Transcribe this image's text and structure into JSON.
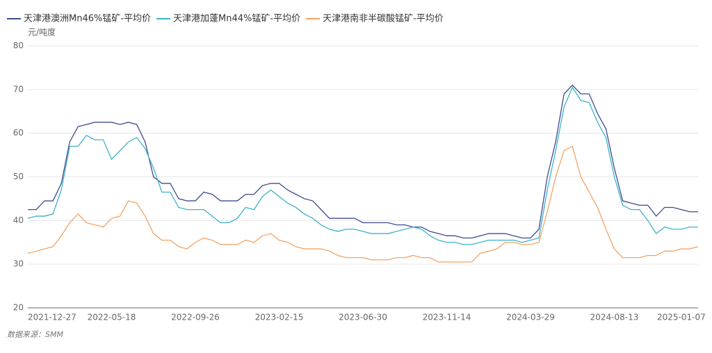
{
  "chart_data": {
    "type": "line",
    "y_label": "元/吨度",
    "source": "数据来源：SMM",
    "categories": [
      "2021-12-27",
      null,
      null,
      null,
      null,
      null,
      null,
      null,
      null,
      null,
      "2022-05-18",
      null,
      null,
      null,
      null,
      null,
      null,
      null,
      null,
      null,
      "2022-09-26",
      null,
      null,
      null,
      null,
      null,
      null,
      null,
      null,
      null,
      "2023-02-15",
      null,
      null,
      null,
      null,
      null,
      null,
      null,
      null,
      null,
      "2023-06-30",
      null,
      null,
      null,
      null,
      null,
      null,
      null,
      null,
      null,
      "2023-11-14",
      null,
      null,
      null,
      null,
      null,
      null,
      null,
      null,
      null,
      "2024-03-29",
      null,
      null,
      null,
      null,
      null,
      null,
      null,
      null,
      null,
      "2024-08-13",
      null,
      null,
      null,
      null,
      null,
      null,
      null,
      "2025-01-07",
      null,
      null
    ],
    "ylim": [
      20,
      80
    ],
    "yticks": [
      20,
      30,
      40,
      50,
      60,
      70,
      80
    ],
    "grid": true,
    "legend": "top-left",
    "series": [
      {
        "name": "天津港澳洲Mn46%锰矿-平均价",
        "color": "#3d4a8f",
        "values": [
          42.5,
          42.5,
          44.5,
          44.5,
          48.5,
          58,
          61.5,
          62,
          62.5,
          62.5,
          62.5,
          62,
          62.5,
          62,
          58,
          50,
          48.5,
          48.5,
          45,
          44.5,
          44.5,
          46.5,
          46,
          44.5,
          44.5,
          44.5,
          46,
          46,
          48,
          48.5,
          48.5,
          47,
          46,
          45,
          44.5,
          42.5,
          40.5,
          40.5,
          40.5,
          40.5,
          39.5,
          39.5,
          39.5,
          39.5,
          39,
          39,
          38.5,
          38.5,
          37.5,
          37,
          36.5,
          36.5,
          36,
          36,
          36.5,
          37,
          37,
          37,
          36.5,
          36,
          36,
          38,
          50,
          58,
          69,
          71,
          69,
          69,
          64.5,
          61,
          52,
          44.5,
          44,
          43.5,
          43.5,
          41,
          43,
          43,
          42.5,
          42,
          42
        ]
      },
      {
        "name": "天津港加蓬Mn44%锰矿-平均价",
        "color": "#3bb2c9",
        "values": [
          40.5,
          41,
          41,
          41.5,
          47,
          57,
          57,
          59.5,
          58.5,
          58.5,
          54,
          56,
          58,
          59,
          56.5,
          52,
          46.5,
          46.5,
          43,
          42.5,
          42.5,
          42.5,
          41,
          39.5,
          39.5,
          40.5,
          43,
          42.5,
          45.5,
          47,
          45.5,
          44,
          43,
          41.5,
          40.5,
          39,
          38,
          37.5,
          38,
          38,
          37.5,
          37,
          37,
          37,
          37.5,
          38,
          38.5,
          38,
          36.5,
          35.5,
          35,
          35,
          34.5,
          34.5,
          35,
          35.5,
          35.5,
          35.5,
          35.5,
          35,
          35.5,
          36,
          47,
          56,
          66,
          70.5,
          67.5,
          67,
          62.5,
          59,
          50,
          43.5,
          42.5,
          42.5,
          40,
          37,
          38.5,
          38,
          38,
          38.5,
          38.5
        ]
      },
      {
        "name": "天津港南非半碳酸锰矿-平均价",
        "color": "#f5a262",
        "values": [
          32.5,
          33,
          33.5,
          34,
          36.5,
          39.5,
          41.5,
          39.5,
          39,
          38.5,
          40.5,
          41,
          44.5,
          44,
          41,
          37,
          35.5,
          35.5,
          34,
          33.5,
          35,
          36,
          35.5,
          34.5,
          34.5,
          34.5,
          35.5,
          35,
          36.5,
          37,
          35.5,
          35,
          34,
          33.5,
          33.5,
          33.5,
          33,
          32,
          31.5,
          31.5,
          31.5,
          31,
          31,
          31,
          31.5,
          31.5,
          32,
          31.5,
          31.5,
          30.5,
          30.5,
          30.5,
          30.5,
          30.5,
          32.5,
          33,
          33.5,
          35,
          35,
          34.5,
          34.5,
          35,
          42,
          50,
          56,
          57,
          50,
          46.5,
          43,
          38,
          33.5,
          31.5,
          31.5,
          31.5,
          32,
          32,
          33,
          33,
          33.5,
          33.5,
          34
        ]
      }
    ]
  }
}
